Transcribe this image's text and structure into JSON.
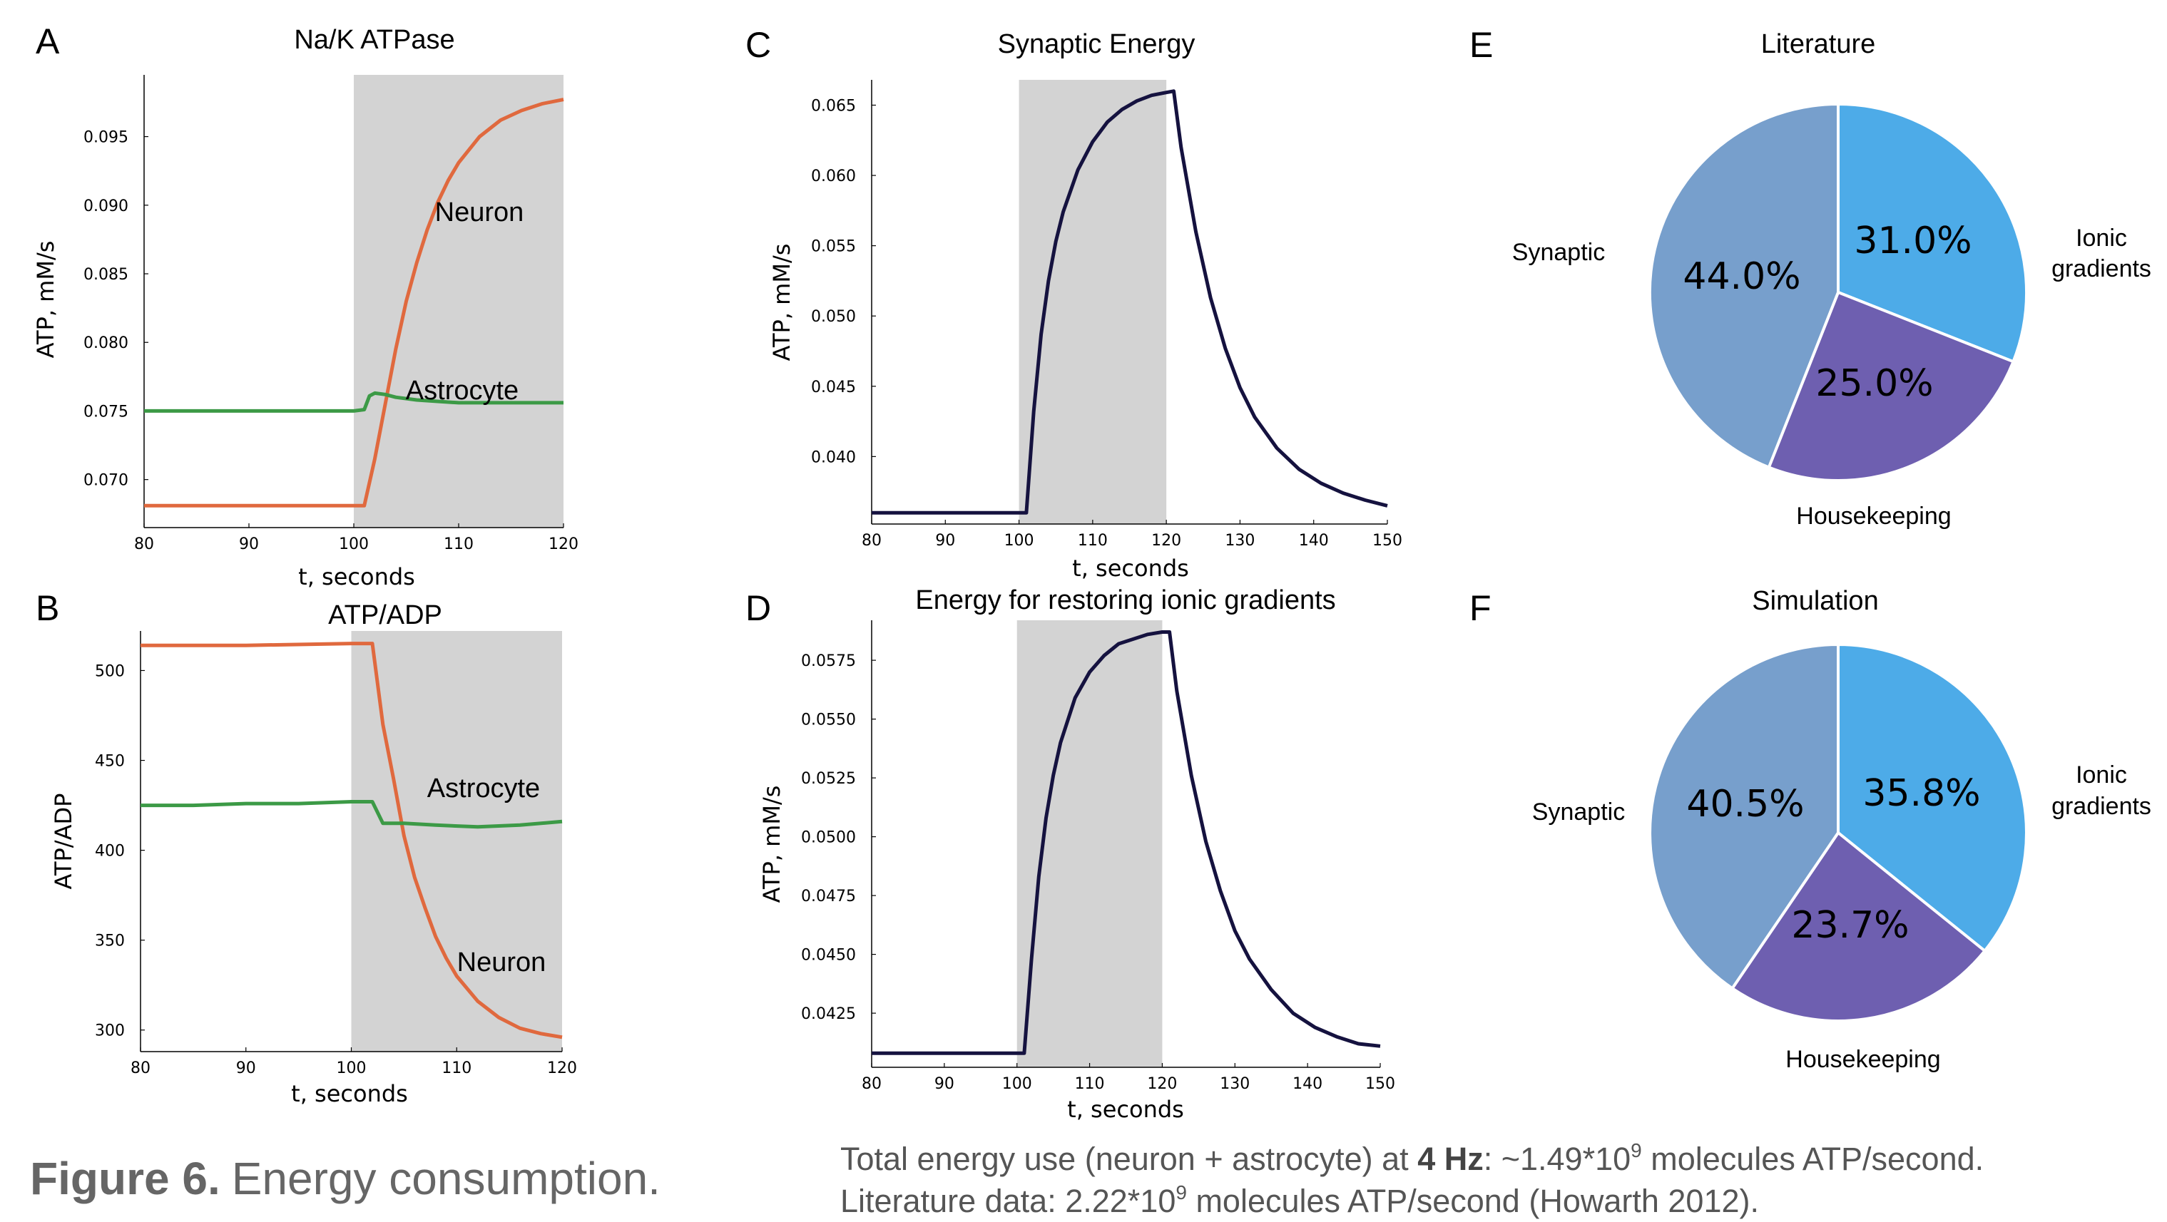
{
  "chart_data": [
    {
      "id": "A",
      "panel_label": "A",
      "type": "line",
      "title": "Na/K ATPase",
      "xlabel": "t, seconds",
      "ylabel": "ATP, mM/s",
      "xlim": [
        80,
        120
      ],
      "ylim": [
        0.0665,
        0.0995
      ],
      "xticks": [
        80,
        90,
        100,
        110,
        120
      ],
      "xtick_labels": [
        "80",
        "90",
        "100",
        "110",
        "120"
      ],
      "yticks": [
        0.07,
        0.075,
        0.08,
        0.085,
        0.09,
        0.095
      ],
      "ytick_labels": [
        "0.070",
        "0.075",
        "0.080",
        "0.085",
        "0.090",
        "0.095"
      ],
      "shaded_interval": [
        100,
        120
      ],
      "series": [
        {
          "name": "Neuron",
          "color": "#E0693E",
          "x": [
            80,
            100,
            101,
            102,
            103,
            104,
            105,
            106,
            107,
            108,
            109,
            110,
            112,
            114,
            116,
            118,
            120
          ],
          "y": [
            0.0681,
            0.0681,
            0.0681,
            0.0715,
            0.0755,
            0.0795,
            0.083,
            0.0858,
            0.0882,
            0.0902,
            0.0918,
            0.0931,
            0.095,
            0.0962,
            0.0969,
            0.0974,
            0.0977
          ]
        },
        {
          "name": "Astrocyte",
          "color": "#3C9A46",
          "x": [
            80,
            100,
            101,
            101.5,
            102,
            103,
            104,
            106,
            108,
            110,
            115,
            120
          ],
          "y": [
            0.075,
            0.075,
            0.0751,
            0.0761,
            0.0763,
            0.0762,
            0.076,
            0.0758,
            0.0757,
            0.0756,
            0.0756,
            0.0756
          ]
        }
      ],
      "annotations": [
        "Neuron",
        "Astrocyte"
      ]
    },
    {
      "id": "B",
      "panel_label": "B",
      "type": "line",
      "title": "ATP/ADP",
      "xlabel": "t, seconds",
      "ylabel": "ATP/ADP",
      "xlim": [
        80,
        120
      ],
      "ylim": [
        288,
        522
      ],
      "xticks": [
        80,
        90,
        100,
        110,
        120
      ],
      "xtick_labels": [
        "80",
        "90",
        "100",
        "110",
        "120"
      ],
      "yticks": [
        300,
        350,
        400,
        450,
        500
      ],
      "ytick_labels": [
        "300",
        "350",
        "400",
        "450",
        "500"
      ],
      "shaded_interval": [
        100,
        120
      ],
      "series": [
        {
          "name": "Neuron",
          "color": "#E0693E",
          "x": [
            80,
            90,
            100,
            102,
            103,
            104,
            105,
            106,
            107,
            108,
            109,
            110,
            112,
            114,
            116,
            118,
            120
          ],
          "y": [
            514,
            514,
            515,
            515,
            470,
            440,
            408,
            385,
            368,
            352,
            340,
            330,
            316,
            307,
            301,
            298,
            296
          ]
        },
        {
          "name": "Astrocyte",
          "color": "#3C9A46",
          "x": [
            80,
            85,
            90,
            95,
            100,
            102,
            103,
            105,
            108,
            112,
            116,
            120
          ],
          "y": [
            425,
            425,
            426,
            426,
            427,
            427,
            415,
            415,
            414,
            413,
            414,
            416
          ]
        }
      ],
      "annotations": [
        "Astrocyte",
        "Neuron"
      ]
    },
    {
      "id": "C",
      "panel_label": "C",
      "type": "line",
      "title": "Synaptic Energy",
      "xlabel": "t, seconds",
      "ylabel": "ATP, mM/s",
      "xlim": [
        80,
        150
      ],
      "ylim": [
        0.0352,
        0.0668
      ],
      "xticks": [
        80,
        90,
        100,
        110,
        120,
        130,
        140,
        150
      ],
      "xtick_labels": [
        "80",
        "90",
        "100",
        "110",
        "120",
        "130",
        "140",
        "150"
      ],
      "yticks": [
        0.04,
        0.045,
        0.05,
        0.055,
        0.06,
        0.065
      ],
      "ytick_labels": [
        "0.040",
        "0.045",
        "0.050",
        "0.055",
        "0.060",
        "0.065"
      ],
      "shaded_interval": [
        100,
        120
      ],
      "series": [
        {
          "name": "",
          "color": "#15123F",
          "x": [
            80,
            100,
            101,
            102,
            103,
            104,
            105,
            106,
            108,
            110,
            112,
            114,
            116,
            118,
            120,
            121,
            122,
            124,
            126,
            128,
            130,
            132,
            135,
            138,
            141,
            144,
            147,
            150
          ],
          "y": [
            0.036,
            0.036,
            0.036,
            0.0432,
            0.0487,
            0.0525,
            0.0553,
            0.0574,
            0.0604,
            0.0624,
            0.0638,
            0.0647,
            0.0653,
            0.0657,
            0.0659,
            0.066,
            0.062,
            0.056,
            0.0513,
            0.0477,
            0.0449,
            0.0428,
            0.0406,
            0.0391,
            0.0381,
            0.0374,
            0.0369,
            0.0365
          ]
        }
      ]
    },
    {
      "id": "D",
      "panel_label": "D",
      "type": "line",
      "title": "Energy for restoring ionic gradients",
      "xlabel": "t, seconds",
      "ylabel": "ATP, mM/s",
      "xlim": [
        80,
        150
      ],
      "ylim": [
        0.0402,
        0.0592
      ],
      "xticks": [
        80,
        90,
        100,
        110,
        120,
        130,
        140,
        150
      ],
      "xtick_labels": [
        "80",
        "90",
        "100",
        "110",
        "120",
        "130",
        "140",
        "150"
      ],
      "yticks": [
        0.0425,
        0.045,
        0.0475,
        0.05,
        0.0525,
        0.055,
        0.0575
      ],
      "ytick_labels": [
        "0.0425",
        "0.0450",
        "0.0475",
        "0.0500",
        "0.0525",
        "0.0550",
        "0.0575"
      ],
      "shaded_interval": [
        100,
        120
      ],
      "series": [
        {
          "name": "",
          "color": "#15123F",
          "x": [
            80,
            100,
            101,
            102,
            103,
            104,
            105,
            106,
            108,
            110,
            112,
            114,
            116,
            118,
            120,
            121,
            122,
            124,
            126,
            128,
            130,
            132,
            135,
            138,
            141,
            144,
            147,
            150
          ],
          "y": [
            0.0408,
            0.0408,
            0.0408,
            0.0448,
            0.0483,
            0.0508,
            0.0526,
            0.054,
            0.0559,
            0.057,
            0.0577,
            0.0582,
            0.0584,
            0.0586,
            0.0587,
            0.0587,
            0.0562,
            0.0526,
            0.0498,
            0.0477,
            0.046,
            0.0448,
            0.0435,
            0.0425,
            0.0419,
            0.0415,
            0.0412,
            0.0411
          ]
        }
      ]
    },
    {
      "id": "E",
      "panel_label": "E",
      "type": "pie",
      "title": "Literature",
      "labels": [
        "Ionic gradients",
        "Housekeeping",
        "Synaptic"
      ],
      "values": [
        31.0,
        25.0,
        44.0
      ],
      "value_labels": [
        "31.0%",
        "25.0%",
        "44.0%"
      ],
      "colors": [
        "#4DABE8",
        "#6E5FB0",
        "#779FCC"
      ]
    },
    {
      "id": "F",
      "panel_label": "F",
      "type": "pie",
      "title": "Simulation",
      "labels": [
        "Ionic gradients",
        "Housekeeping",
        "Synaptic"
      ],
      "values": [
        35.8,
        23.7,
        40.5
      ],
      "value_labels": [
        "35.8%",
        "23.7%",
        "40.5%"
      ],
      "colors": [
        "#4DABE8",
        "#6E5FB0",
        "#779FCC"
      ]
    }
  ],
  "pie_label_lines": {
    "ionic": [
      "Ionic",
      "gradients"
    ],
    "housekeeping": [
      "Housekeeping"
    ],
    "synaptic": [
      "Synaptic"
    ]
  },
  "caption": {
    "bold": "Figure 6.",
    "text": "Energy consumption."
  },
  "note": {
    "line1_pre": "Total energy use (neuron + astrocyte) at ",
    "line1_bold": "4 Hz",
    "line1_mid": ": ~1.49*10",
    "line1_sup": "9",
    "line1_post": " molecules ATP/second.",
    "line2_pre": "Literature data: 2.22*10",
    "line2_sup": "9",
    "line2_post": " molecules ATP/second (Howarth 2012)."
  }
}
